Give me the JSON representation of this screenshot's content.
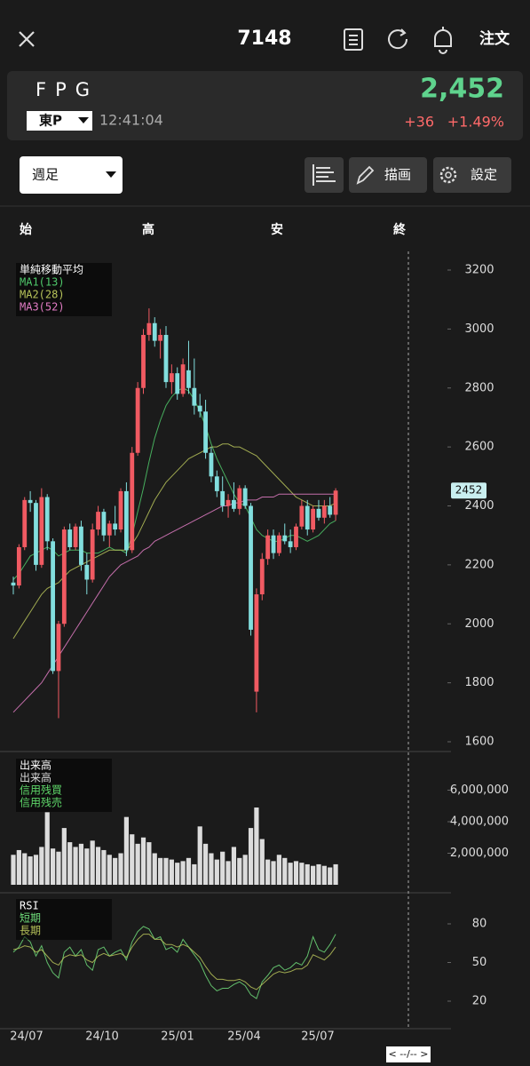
{
  "header": {
    "symbol": "7148",
    "order": "注文"
  },
  "quote": {
    "name": "FPG",
    "market": "東P",
    "time": "12:41:04",
    "price": "2,452",
    "change": "+36",
    "change_pct": "+1.49%"
  },
  "toolbar": {
    "period": "週足",
    "draw": "描画",
    "settings": "設定"
  },
  "ohlc_header": [
    "始",
    "高",
    "安",
    "終"
  ],
  "x_labels": [
    "24/07",
    "24/10",
    "25/01",
    "25/04",
    "25/07"
  ],
  "nav": "< --/-- >",
  "chart_data": [
    {
      "type": "candlestick",
      "legend_title": "単純移動平均",
      "up_color": "#f05a62",
      "down_color": "#82dede",
      "ohlc": [
        [
          2140,
          2160,
          2100,
          2130
        ],
        [
          2130,
          2270,
          2120,
          2260
        ],
        [
          2260,
          2430,
          2250,
          2420
        ],
        [
          2420,
          2450,
          2380,
          2410
        ],
        [
          2410,
          2420,
          2180,
          2200
        ],
        [
          2200,
          2460,
          2190,
          2430
        ],
        [
          2430,
          2440,
          2250,
          2280
        ],
        [
          2280,
          2290,
          1830,
          1840
        ],
        [
          1840,
          2010,
          1680,
          2000
        ],
        [
          2000,
          2330,
          1990,
          2320
        ],
        [
          2320,
          2340,
          2250,
          2260
        ],
        [
          2260,
          2340,
          2250,
          2330
        ],
        [
          2330,
          2350,
          2180,
          2200
        ],
        [
          2200,
          2240,
          2100,
          2150
        ],
        [
          2150,
          2340,
          2140,
          2320
        ],
        [
          2320,
          2400,
          2300,
          2380
        ],
        [
          2380,
          2390,
          2280,
          2300
        ],
        [
          2300,
          2350,
          2260,
          2340
        ],
        [
          2340,
          2400,
          2300,
          2320
        ],
        [
          2320,
          2460,
          2310,
          2450
        ],
        [
          2450,
          2480,
          2230,
          2250
        ],
        [
          2250,
          2600,
          2240,
          2580
        ],
        [
          2580,
          2820,
          2570,
          2800
        ],
        [
          2800,
          3000,
          2780,
          2980
        ],
        [
          2980,
          3070,
          2960,
          3020
        ],
        [
          3020,
          3040,
          2940,
          2960
        ],
        [
          2960,
          3000,
          2900,
          2980
        ],
        [
          2980,
          3010,
          2800,
          2820
        ],
        [
          2820,
          2880,
          2780,
          2850
        ],
        [
          2850,
          2870,
          2760,
          2780
        ],
        [
          2780,
          2900,
          2770,
          2880
        ],
        [
          2860,
          2960,
          2780,
          2800
        ],
        [
          2800,
          2900,
          2710,
          2740
        ],
        [
          2740,
          2780,
          2700,
          2720
        ],
        [
          2720,
          2760,
          2560,
          2580
        ],
        [
          2580,
          2600,
          2480,
          2500
        ],
        [
          2500,
          2520,
          2430,
          2450
        ],
        [
          2450,
          2500,
          2380,
          2400
        ],
        [
          2400,
          2440,
          2360,
          2420
        ],
        [
          2420,
          2480,
          2380,
          2390
        ],
        [
          2390,
          2470,
          2370,
          2460
        ],
        [
          2460,
          2470,
          2390,
          2400
        ],
        [
          2400,
          2410,
          1960,
          1980
        ],
        [
          1770,
          2120,
          1700,
          2100
        ],
        [
          2100,
          2240,
          2080,
          2220
        ],
        [
          2220,
          2320,
          2200,
          2300
        ],
        [
          2300,
          2320,
          2220,
          2240
        ],
        [
          2240,
          2310,
          2230,
          2300
        ],
        [
          2300,
          2340,
          2270,
          2280
        ],
        [
          2280,
          2320,
          2240,
          2260
        ],
        [
          2260,
          2340,
          2250,
          2330
        ],
        [
          2330,
          2420,
          2320,
          2400
        ],
        [
          2400,
          2420,
          2300,
          2320
        ],
        [
          2320,
          2400,
          2310,
          2390
        ],
        [
          2390,
          2420,
          2350,
          2360
        ],
        [
          2360,
          2420,
          2340,
          2400
        ],
        [
          2400,
          2430,
          2360,
          2370
        ],
        [
          2370,
          2460,
          2350,
          2452
        ]
      ],
      "series": [
        {
          "name": "MA1(13)",
          "color": "#4fc86a",
          "values": [
            2150,
            2170,
            2200,
            2230,
            2240,
            2250,
            2260,
            2250,
            2230,
            2240,
            2250,
            2250,
            2250,
            2240,
            2240,
            2240,
            2250,
            2260,
            2250,
            2250,
            2240,
            2300,
            2380,
            2460,
            2550,
            2630,
            2690,
            2740,
            2770,
            2790,
            2800,
            2790,
            2760,
            2720,
            2670,
            2610,
            2560,
            2520,
            2480,
            2440,
            2410,
            2400,
            2360,
            2320,
            2300,
            2290,
            2280,
            2280,
            2290,
            2300,
            2300,
            2290,
            2280,
            2290,
            2300,
            2320,
            2340,
            2350
          ]
        },
        {
          "name": "MA2(28)",
          "color": "#b8c45a",
          "values": [
            1950,
            1980,
            2010,
            2040,
            2070,
            2100,
            2120,
            2130,
            2140,
            2160,
            2180,
            2190,
            2200,
            2210,
            2220,
            2230,
            2240,
            2250,
            2250,
            2250,
            2250,
            2270,
            2300,
            2340,
            2380,
            2420,
            2450,
            2480,
            2500,
            2520,
            2540,
            2560,
            2570,
            2580,
            2590,
            2600,
            2600,
            2610,
            2610,
            2600,
            2600,
            2590,
            2580,
            2570,
            2550,
            2530,
            2510,
            2490,
            2470,
            2450,
            2430,
            2420,
            2410,
            2400,
            2400,
            2400,
            2400,
            2410
          ]
        },
        {
          "name": "MA3(52)",
          "color": "#e27cc4",
          "values": [
            1700,
            1720,
            1740,
            1760,
            1780,
            1800,
            1830,
            1860,
            1890,
            1920,
            1950,
            1980,
            2010,
            2040,
            2070,
            2100,
            2130,
            2160,
            2180,
            2200,
            2210,
            2220,
            2230,
            2250,
            2260,
            2280,
            2290,
            2300,
            2310,
            2320,
            2330,
            2340,
            2350,
            2360,
            2370,
            2380,
            2390,
            2400,
            2400,
            2410,
            2410,
            2420,
            2420,
            2420,
            2430,
            2430,
            2430,
            2440,
            2440,
            2440,
            2440,
            2440,
            2440,
            2440,
            2440,
            2440,
            2440,
            2440
          ]
        }
      ],
      "ylim": [
        1600,
        3200
      ],
      "yticks": [
        1600,
        1800,
        2000,
        2200,
        2400,
        2600,
        2800,
        3000,
        3200
      ],
      "price_tag": 2452
    },
    {
      "type": "bar",
      "legend_title": "出来高",
      "ylim": [
        0,
        8000000
      ],
      "yticks": [
        {
          "value": 2000000,
          "label": "2,000,000"
        },
        {
          "value": 4000000,
          "label": "4,000,000"
        },
        {
          "value": 6000000,
          "label": "6,000,000"
        }
      ],
      "series": [
        {
          "name": "出来高",
          "color": "#dcdcdc",
          "values": [
            1900000,
            2200000,
            2000000,
            1800000,
            1900000,
            2400000,
            4600000,
            2300000,
            2100000,
            3600000,
            2700000,
            2400000,
            2600000,
            2300000,
            2800000,
            2400000,
            2200000,
            1900000,
            1700000,
            2000000,
            4300000,
            3200000,
            2600000,
            3000000,
            2700000,
            2000000,
            1700000,
            1700000,
            1600000,
            1400000,
            1500000,
            1700000,
            1300000,
            3700000,
            2600000,
            2000000,
            1600000,
            2100000,
            1500000,
            2400000,
            1700000,
            1900000,
            3600000,
            4900000,
            2900000,
            1600000,
            1500000,
            1900000,
            1700000,
            1400000,
            1500000,
            1400000,
            1300000,
            1200000,
            1300000,
            1200000,
            1100000,
            1300000
          ]
        }
      ],
      "legend": [
        {
          "name": "信用残買",
          "color": "#5fd86a"
        },
        {
          "name": "信用残売",
          "color": "#5fd86a"
        }
      ]
    },
    {
      "type": "line",
      "legend_title": "RSI",
      "ylim": [
        0,
        100
      ],
      "yticks": [
        20,
        50,
        80
      ],
      "series": [
        {
          "name": "短期",
          "color": "#6fdc7a",
          "values": [
            58,
            62,
            70,
            66,
            55,
            63,
            50,
            42,
            38,
            58,
            62,
            55,
            60,
            48,
            44,
            60,
            62,
            55,
            58,
            60,
            52,
            66,
            74,
            78,
            76,
            68,
            70,
            60,
            62,
            58,
            68,
            62,
            56,
            50,
            40,
            32,
            28,
            30,
            30,
            33,
            35,
            32,
            25,
            22,
            35,
            40,
            46,
            48,
            44,
            46,
            50,
            48,
            55,
            70,
            60,
            58,
            64,
            72
          ]
        },
        {
          "name": "長期",
          "color": "#b8c45a",
          "values": [
            60,
            61,
            63,
            62,
            58,
            60,
            55,
            50,
            48,
            54,
            56,
            55,
            56,
            52,
            50,
            55,
            57,
            55,
            56,
            57,
            54,
            62,
            68,
            72,
            72,
            68,
            68,
            64,
            64,
            62,
            64,
            62,
            58,
            54,
            47,
            41,
            37,
            37,
            36,
            36,
            37,
            35,
            31,
            29,
            33,
            37,
            41,
            43,
            42,
            43,
            45,
            45,
            48,
            56,
            54,
            52,
            56,
            62
          ]
        }
      ]
    }
  ]
}
